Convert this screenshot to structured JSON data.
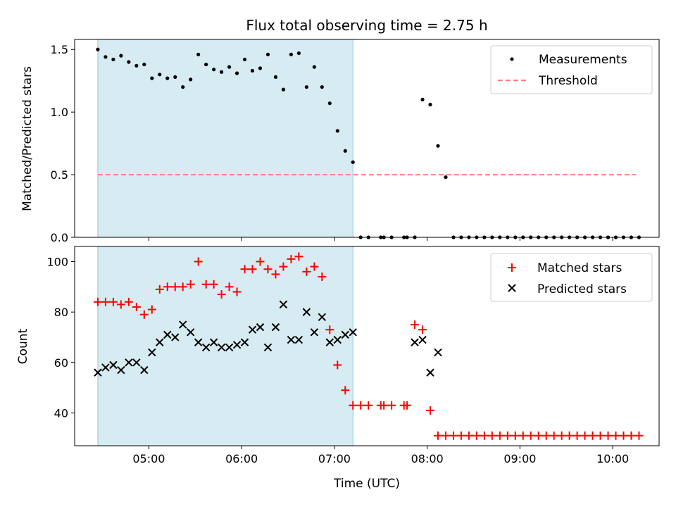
{
  "figure": {
    "title": "Flux total observing time = 2.75 h",
    "xlabel": "Time (UTC)",
    "xticks": [
      "05:00",
      "06:00",
      "07:00",
      "08:00",
      "09:00",
      "10:00"
    ],
    "shaded_region_hours": [
      4.45,
      7.2
    ],
    "shaded_color": "#add8e6"
  },
  "chart_data": [
    {
      "type": "scatter",
      "ylabel": "Matched/Predicted stars",
      "ylim": [
        0,
        1.58
      ],
      "yticks": [
        "0.0",
        "0.5",
        "1.0",
        "1.5"
      ],
      "ytick_values": [
        0,
        0.5,
        1.0,
        1.5
      ],
      "legend_position": "top-right",
      "series": [
        {
          "name": "Measurements",
          "color": "#000000",
          "marker": "dot",
          "x": [
            "04:27",
            "04:32",
            "04:37",
            "04:42",
            "04:47",
            "04:52",
            "04:57",
            "05:02",
            "05:07",
            "05:12",
            "05:17",
            "05:22",
            "05:27",
            "05:32",
            "05:37",
            "05:42",
            "05:47",
            "05:52",
            "05:57",
            "06:02",
            "06:07",
            "06:12",
            "06:17",
            "06:22",
            "06:27",
            "06:32",
            "06:37",
            "06:42",
            "06:47",
            "06:52",
            "06:57",
            "07:02",
            "07:07",
            "07:12",
            "07:17",
            "07:22",
            "07:30",
            "07:32",
            "07:37",
            "07:45",
            "07:47",
            "07:52",
            "07:57",
            "08:02",
            "08:07",
            "08:12",
            "08:17",
            "08:22",
            "08:27",
            "08:32",
            "08:37",
            "08:42",
            "08:47",
            "08:52",
            "08:57",
            "09:02",
            "09:07",
            "09:12",
            "09:17",
            "09:22",
            "09:27",
            "09:32",
            "09:37",
            "09:42",
            "09:47",
            "09:52",
            "09:57",
            "10:02",
            "10:07",
            "10:12",
            "10:17"
          ],
          "y": [
            1.5,
            1.44,
            1.42,
            1.45,
            1.4,
            1.37,
            1.38,
            1.27,
            1.3,
            1.27,
            1.28,
            1.2,
            1.26,
            1.46,
            1.38,
            1.34,
            1.32,
            1.36,
            1.31,
            1.42,
            1.33,
            1.35,
            1.46,
            1.28,
            1.18,
            1.46,
            1.47,
            1.2,
            1.36,
            1.2,
            1.07,
            0.85,
            0.69,
            0.6,
            0,
            0,
            0,
            0,
            0,
            0,
            0,
            0,
            1.1,
            1.06,
            0.73,
            0.48,
            0,
            0,
            0,
            0,
            0,
            0,
            0,
            0,
            0,
            0,
            0,
            0,
            0,
            0,
            0,
            0,
            0,
            0,
            0,
            0,
            0,
            0,
            0,
            0,
            0
          ]
        },
        {
          "name": "Threshold",
          "color": "#ff7f7f",
          "style": "dashed",
          "x": [
            "04:27",
            "10:15"
          ],
          "y": [
            0.5,
            0.5
          ]
        }
      ]
    },
    {
      "type": "scatter",
      "ylabel": "Count",
      "ylim": [
        27,
        106
      ],
      "yticks": [
        "40",
        "60",
        "80",
        "100"
      ],
      "ytick_values": [
        40,
        60,
        80,
        100
      ],
      "legend_position": "top-right",
      "series": [
        {
          "name": "Matched stars",
          "color": "#ff0000",
          "marker": "plus",
          "x": [
            "04:27",
            "04:32",
            "04:37",
            "04:42",
            "04:47",
            "04:52",
            "04:57",
            "05:02",
            "05:07",
            "05:12",
            "05:17",
            "05:22",
            "05:27",
            "05:32",
            "05:37",
            "05:42",
            "05:47",
            "05:52",
            "05:57",
            "06:02",
            "06:07",
            "06:12",
            "06:17",
            "06:22",
            "06:27",
            "06:32",
            "06:37",
            "06:42",
            "06:47",
            "06:52",
            "06:57",
            "07:02",
            "07:07",
            "07:12",
            "07:17",
            "07:22",
            "07:30",
            "07:32",
            "07:37",
            "07:45",
            "07:47",
            "07:52",
            "07:57",
            "08:02",
            "08:07",
            "08:12",
            "08:17",
            "08:22",
            "08:27",
            "08:32",
            "08:37",
            "08:42",
            "08:47",
            "08:52",
            "08:57",
            "09:02",
            "09:07",
            "09:12",
            "09:17",
            "09:22",
            "09:27",
            "09:32",
            "09:37",
            "09:42",
            "09:47",
            "09:52",
            "09:57",
            "10:02",
            "10:07",
            "10:12",
            "10:17"
          ],
          "y": [
            84,
            84,
            84,
            83,
            84,
            82,
            79,
            81,
            89,
            90,
            90,
            90,
            91,
            100,
            91,
            91,
            87,
            90,
            88,
            97,
            97,
            100,
            97,
            95,
            98,
            101,
            102,
            96,
            98,
            94,
            73,
            59,
            49,
            43,
            43,
            43,
            43,
            43,
            43,
            43,
            43,
            75,
            73,
            41,
            31,
            31,
            31,
            31,
            31,
            31,
            31,
            31,
            31,
            31,
            31,
            31,
            31,
            31,
            31,
            31,
            31,
            31,
            31,
            31,
            31,
            31,
            31,
            31,
            31,
            31,
            31
          ]
        },
        {
          "name": "Predicted stars",
          "color": "#000000",
          "marker": "x",
          "x": [
            "04:27",
            "04:32",
            "04:37",
            "04:42",
            "04:47",
            "04:52",
            "04:57",
            "05:02",
            "05:07",
            "05:12",
            "05:17",
            "05:22",
            "05:27",
            "05:32",
            "05:37",
            "05:42",
            "05:47",
            "05:52",
            "05:57",
            "06:02",
            "06:07",
            "06:12",
            "06:17",
            "06:22",
            "06:27",
            "06:32",
            "06:37",
            "06:42",
            "06:47",
            "06:52",
            "06:57",
            "07:02",
            "07:07",
            "07:12",
            "07:52",
            "07:57",
            "08:02",
            "08:07"
          ],
          "y": [
            56,
            58,
            59,
            57,
            60,
            60,
            57,
            64,
            68,
            71,
            70,
            75,
            72,
            68,
            66,
            68,
            66,
            66,
            67,
            68,
            73,
            74,
            66,
            74,
            83,
            69,
            69,
            80,
            72,
            78,
            68,
            69,
            71,
            72,
            68,
            69,
            56,
            64
          ]
        }
      ]
    }
  ]
}
